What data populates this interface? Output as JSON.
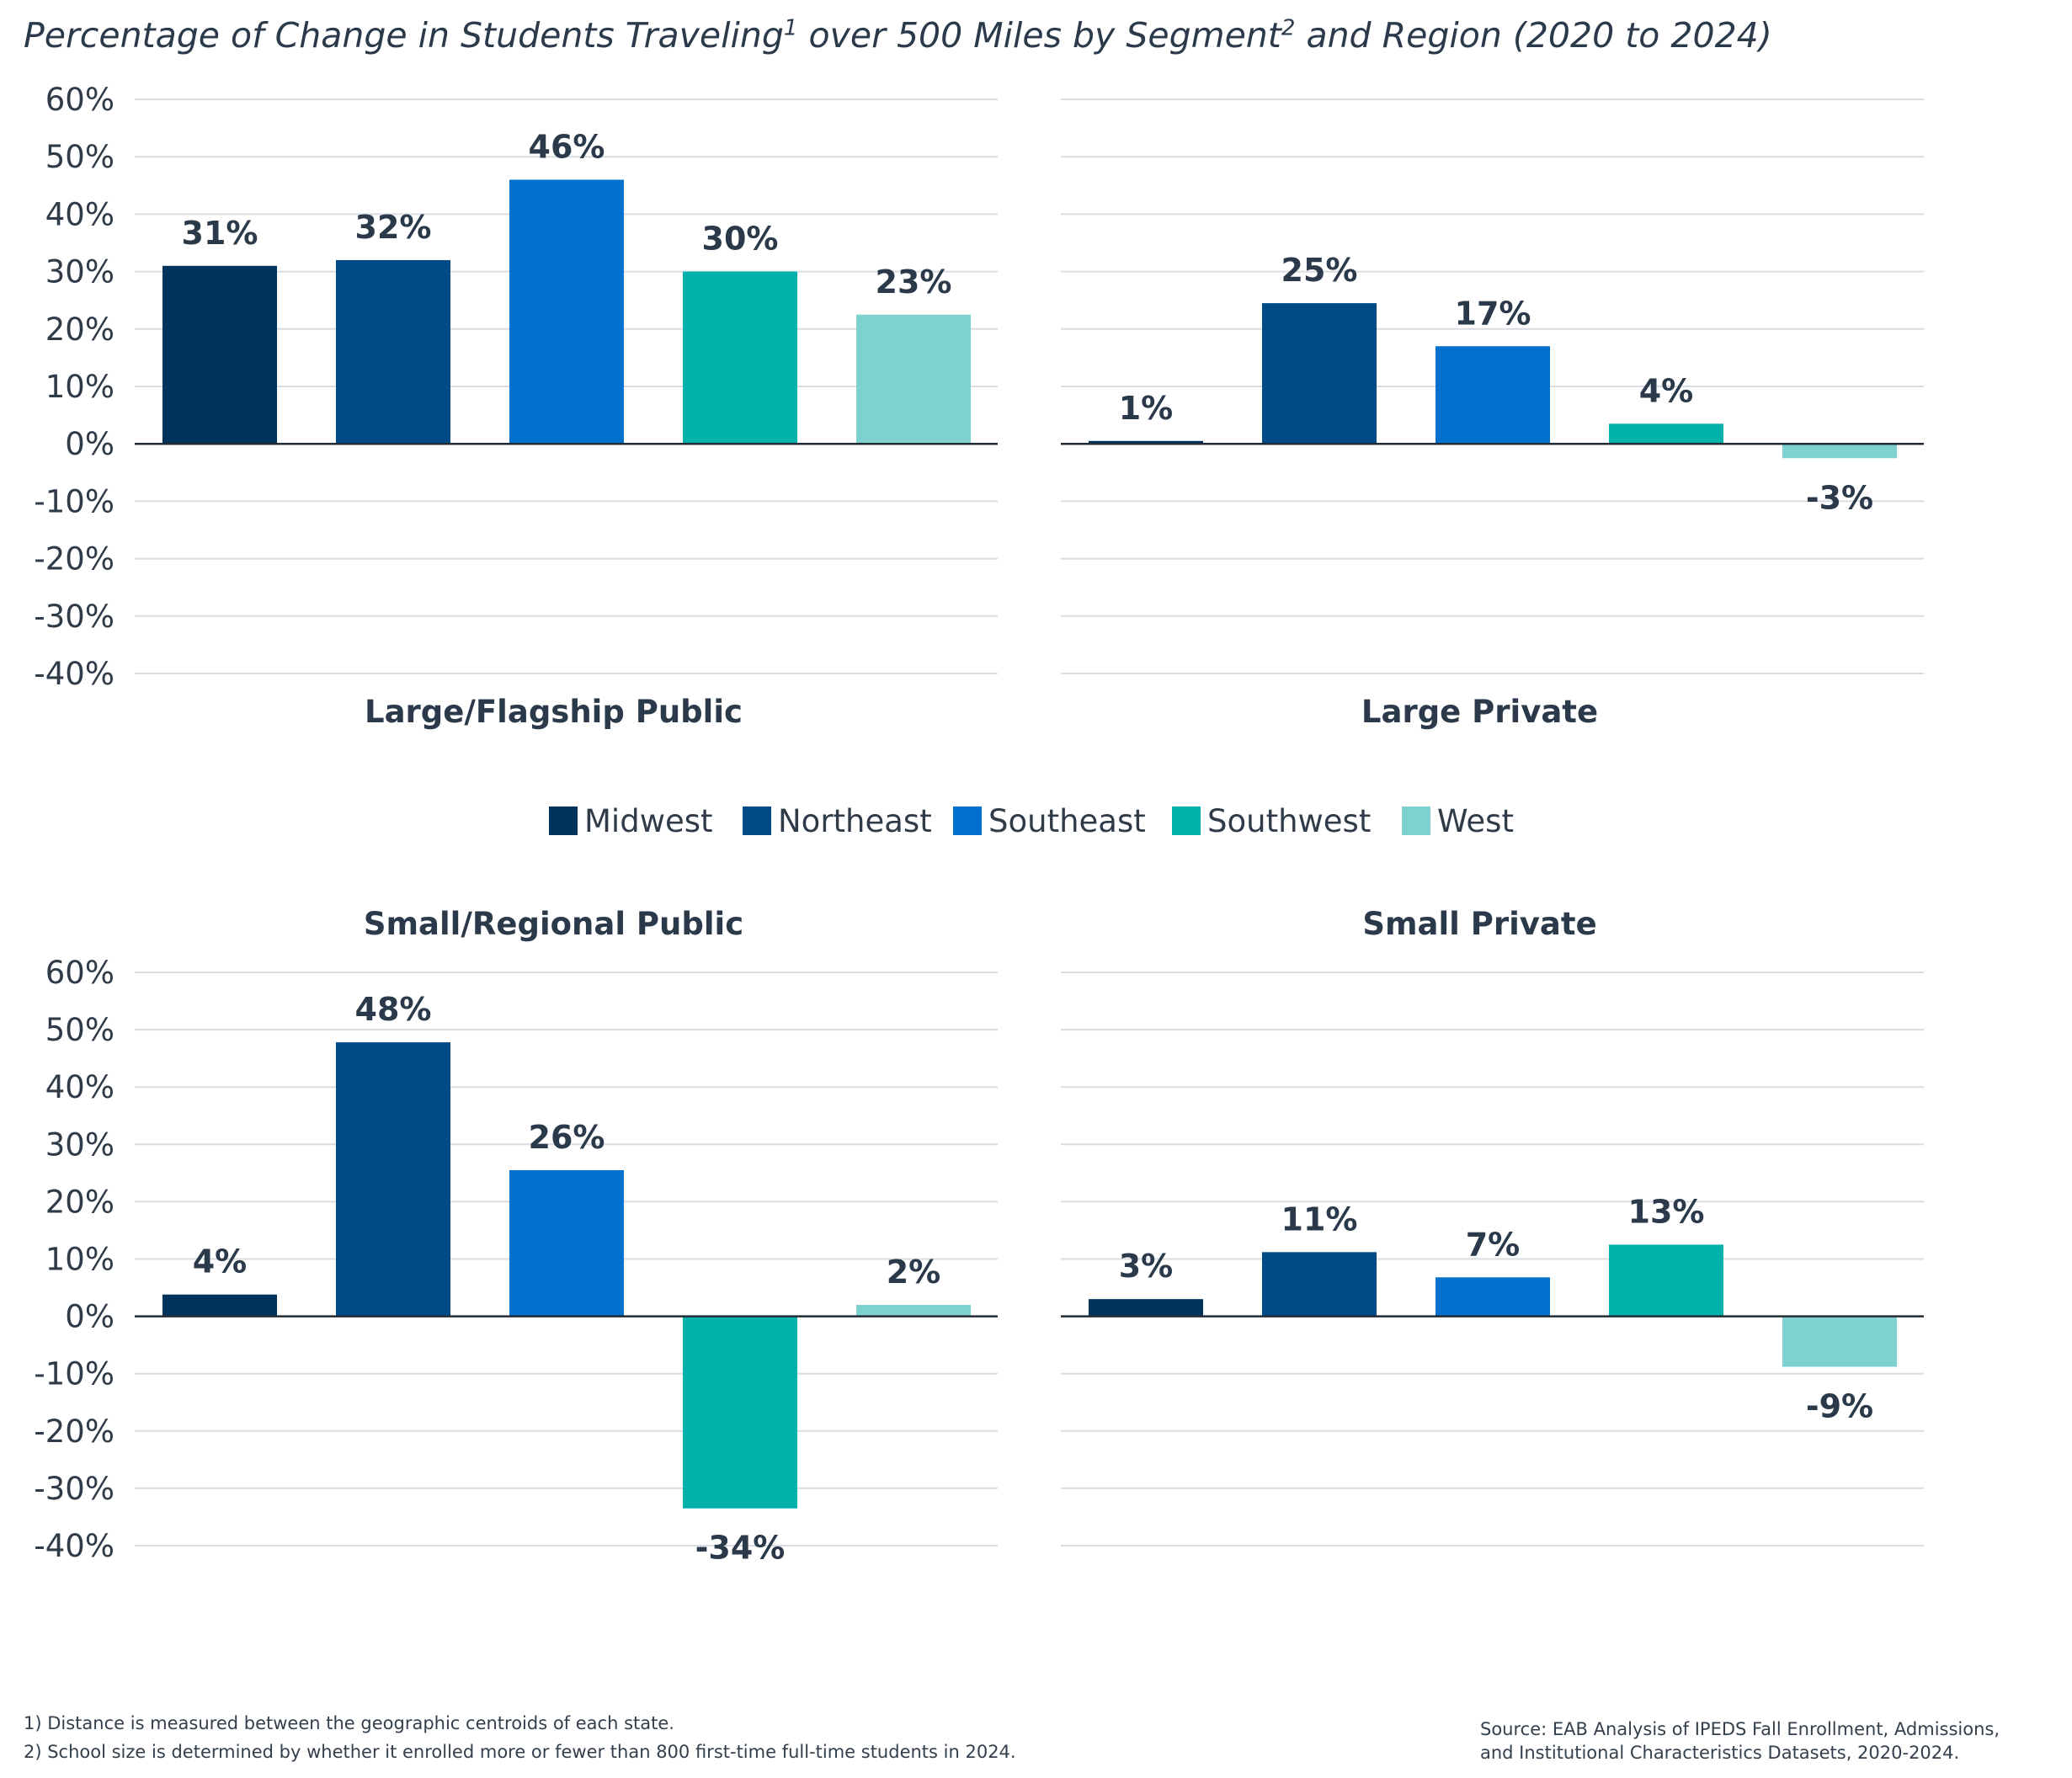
{
  "title": {
    "part1": "Percentage of Change in Students Traveling",
    "sup1": "1",
    "part2": " over 500 Miles by Segment",
    "sup2": "2",
    "part3": " and Region (2020 to 2024)"
  },
  "colors": {
    "Midwest": "#00335c",
    "Northeast": "#004b87",
    "Southeast": "#0072ce",
    "Southwest": "#00b1ac",
    "West": "#7fd1cf",
    "grid": "#d9dce2",
    "text": "#2b3a4a"
  },
  "legend": [
    "Midwest",
    "Northeast",
    "Southeast",
    "Southwest",
    "West"
  ],
  "chart_data": [
    {
      "type": "bar",
      "title": "Large/Flagship Public",
      "categories": [
        "Midwest",
        "Northeast",
        "Southeast",
        "Southwest",
        "West"
      ],
      "values": [
        31,
        32,
        46,
        30,
        22.5
      ],
      "data_labels": [
        "31%",
        "32%",
        "46%",
        "30%",
        "23%"
      ],
      "ylim": [
        -40,
        60
      ],
      "yticks": [
        "60%",
        "50%",
        "40%",
        "30%",
        "20%",
        "10%",
        "0%",
        "-10%",
        "-20%",
        "-30%",
        "-40%"
      ]
    },
    {
      "type": "bar",
      "title": "Large Private",
      "categories": [
        "Midwest",
        "Northeast",
        "Southeast",
        "Southwest",
        "West"
      ],
      "values": [
        0.5,
        24.5,
        17,
        3.5,
        -2.5
      ],
      "data_labels": [
        "1%",
        "25%",
        "17%",
        "4%",
        "-3%"
      ],
      "ylim": [
        -40,
        60
      ],
      "yticks": []
    },
    {
      "type": "bar",
      "title": "Small/Regional Public",
      "categories": [
        "Midwest",
        "Northeast",
        "Southeast",
        "Southwest",
        "West"
      ],
      "values": [
        3.8,
        47.8,
        25.5,
        -33.5,
        2
      ],
      "data_labels": [
        "4%",
        "48%",
        "26%",
        "-34%",
        "2%"
      ],
      "ylim": [
        -40,
        60
      ],
      "yticks": [
        "60%",
        "50%",
        "40%",
        "30%",
        "20%",
        "10%",
        "0%",
        "-10%",
        "-20%",
        "-30%",
        "-40%"
      ]
    },
    {
      "type": "bar",
      "title": "Small Private",
      "categories": [
        "Midwest",
        "Northeast",
        "Southeast",
        "Southwest",
        "West"
      ],
      "values": [
        3,
        11.2,
        6.8,
        12.5,
        -8.8
      ],
      "data_labels": [
        "3%",
        "11%",
        "7%",
        "13%",
        "-9%"
      ],
      "ylim": [
        -40,
        60
      ],
      "yticks": []
    }
  ],
  "footnotes": [
    "1)  Distance is measured between the geographic centroids of each state.",
    "2)  School size is determined by whether it enrolled more or fewer than 800 first-time full-time students in 2024."
  ],
  "source": {
    "line1": "Source: EAB Analysis of IPEDS Fall Enrollment, Admissions,",
    "line2": "and Institutional Characteristics Datasets, 2020-2024."
  }
}
